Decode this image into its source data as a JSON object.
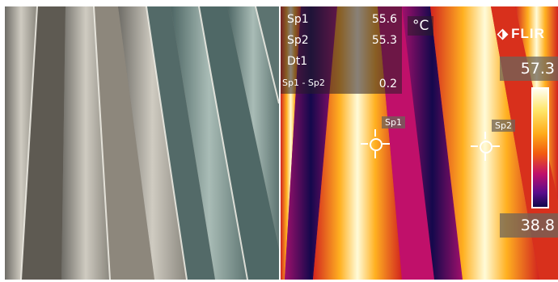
{
  "thermal": {
    "unit": "°C",
    "measurements": [
      {
        "label": "Sp1",
        "value": "55.6"
      },
      {
        "label": "Sp2",
        "value": "55.3"
      },
      {
        "label": "Dt1",
        "value": ""
      },
      {
        "label": "Sp1 - Sp2",
        "value": "0.2"
      }
    ],
    "logo": "FLIR",
    "scale_max": "57.3",
    "scale_min": "38.8",
    "spots": [
      {
        "label": "Sp1"
      },
      {
        "label": "Sp2"
      }
    ],
    "palette": "iron"
  },
  "photo": {
    "subject": "corrugated metal roof panels"
  }
}
